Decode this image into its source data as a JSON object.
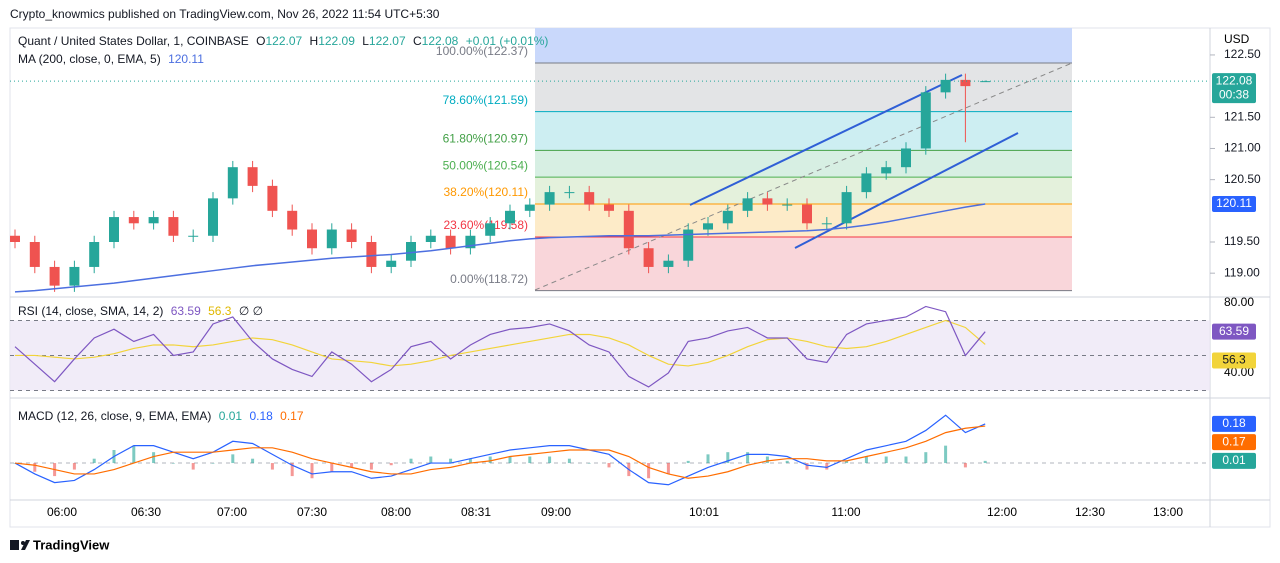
{
  "header": {
    "text": "Crypto_knowmics published on TradingView.com, Nov 26, 2022 11:54 UTC+5:30"
  },
  "footer": {
    "brand": "TradingView"
  },
  "chart_data": {
    "type": "candlestick",
    "symbol": "Quant / United States Dollar, 1, COINBASE",
    "ohlc_labels": [
      "O",
      "H",
      "L",
      "C"
    ],
    "change": "+0.01 (+0.01%)",
    "currency": "USD",
    "countdown": "00:38",
    "up_color": "#26a69a",
    "down_color": "#ef5350",
    "ylim": [
      118.65,
      122.9
    ],
    "yticks": [
      {
        "value": 122.5,
        "label": "122.50"
      },
      {
        "value": 121.5,
        "label": "121.50"
      },
      {
        "value": 121,
        "label": "121.00"
      },
      {
        "value": 120.5,
        "label": "120.50"
      },
      {
        "value": 119.5,
        "label": "119.50"
      },
      {
        "value": 119,
        "label": "119.00"
      }
    ],
    "xticks": [
      "06:00",
      "06:30",
      "07:00",
      "07:30",
      "08:00",
      "08:31",
      "09:00",
      "10:01",
      "11:00",
      "12:00",
      "12:30",
      "13:00"
    ],
    "candles": {
      "open": [
        119.6,
        119.5,
        119.1,
        118.8,
        119.1,
        119.5,
        119.9,
        119.8,
        119.9,
        119.6,
        119.6,
        120.2,
        120.7,
        120.4,
        120.0,
        119.7,
        119.4,
        119.7,
        119.5,
        119.1,
        119.2,
        119.5,
        119.6,
        119.4,
        119.6,
        119.8,
        120.0,
        120.1,
        120.3,
        120.3,
        120.1,
        120.0,
        119.4,
        119.1,
        119.2,
        119.7,
        119.8,
        120.0,
        120.2,
        120.1,
        120.1,
        119.8,
        119.8,
        120.3,
        120.6,
        120.7,
        121.0,
        121.9,
        122.1,
        122.07
      ],
      "high": [
        119.7,
        119.6,
        119.2,
        119.2,
        119.6,
        120.0,
        120.0,
        120.0,
        120.0,
        119.7,
        120.3,
        120.8,
        120.8,
        120.5,
        120.1,
        119.8,
        119.8,
        119.8,
        119.6,
        119.3,
        119.6,
        119.7,
        119.7,
        119.7,
        119.9,
        120.1,
        120.2,
        120.4,
        120.4,
        120.4,
        120.2,
        120.1,
        119.5,
        119.3,
        119.8,
        119.9,
        120.1,
        120.3,
        120.3,
        120.2,
        120.2,
        119.9,
        120.4,
        120.7,
        120.8,
        121.1,
        122.0,
        122.2,
        122.2,
        122.09
      ],
      "low": [
        119.4,
        119.0,
        118.7,
        118.7,
        119.0,
        119.4,
        119.7,
        119.7,
        119.5,
        119.5,
        119.5,
        120.1,
        120.3,
        119.9,
        119.6,
        119.3,
        119.3,
        119.4,
        119.0,
        119.0,
        119.1,
        119.4,
        119.3,
        119.3,
        119.5,
        119.7,
        119.9,
        120.0,
        120.2,
        120.0,
        119.9,
        119.3,
        119.0,
        119.0,
        119.1,
        119.6,
        119.7,
        119.9,
        120.0,
        120.0,
        119.7,
        119.7,
        119.7,
        120.2,
        120.5,
        120.6,
        120.9,
        121.8,
        121.1,
        122.07
      ],
      "close": [
        119.5,
        119.1,
        118.8,
        119.1,
        119.5,
        119.9,
        119.8,
        119.9,
        119.6,
        119.6,
        120.2,
        120.7,
        120.4,
        120.0,
        119.7,
        119.4,
        119.7,
        119.5,
        119.1,
        119.2,
        119.5,
        119.6,
        119.4,
        119.6,
        119.8,
        120.0,
        120.1,
        120.3,
        120.3,
        120.1,
        120.0,
        119.4,
        119.1,
        119.2,
        119.7,
        119.8,
        120.0,
        120.2,
        120.1,
        120.1,
        119.8,
        119.8,
        120.3,
        120.6,
        120.7,
        121.0,
        121.9,
        122.1,
        122.0,
        122.08
      ]
    },
    "ma": {
      "name": "MA (200, close, 0, EMA, 5)",
      "color": "#4c6fe0",
      "values": [
        118.7,
        118.72,
        118.75,
        118.78,
        118.81,
        118.84,
        118.88,
        118.92,
        118.96,
        119.0,
        119.04,
        119.08,
        119.12,
        119.15,
        119.18,
        119.21,
        119.24,
        119.26,
        119.28,
        119.3,
        119.33,
        119.36,
        119.4,
        119.44,
        119.48,
        119.52,
        119.55,
        119.57,
        119.58,
        119.59,
        119.6,
        119.6,
        119.6,
        119.61,
        119.62,
        119.63,
        119.64,
        119.65,
        119.66,
        119.67,
        119.68,
        119.7,
        119.73,
        119.77,
        119.82,
        119.88,
        119.94,
        120.0,
        120.06,
        120.11
      ]
    },
    "fib_levels": [
      {
        "label": "100.00%(122.37)",
        "price": 122.37,
        "color": "#787b86",
        "fill": "#e3e4e6"
      },
      {
        "label": "78.60%(121.59)",
        "price": 121.59,
        "color": "#00acc1",
        "fill": "#cdeef2"
      },
      {
        "label": "61.80%(120.97)",
        "price": 120.97,
        "color": "#43a047",
        "fill": "#d7efe3"
      },
      {
        "label": "50.00%(120.54)",
        "price": 120.54,
        "color": "#4caf50",
        "fill": "#e4f1dc"
      },
      {
        "label": "38.20%(120.11)",
        "price": 120.11,
        "color": "#ff9800",
        "fill": "#fdebc8"
      },
      {
        "label": "23.60%(119.58)",
        "price": 119.58,
        "color": "#f23645",
        "fill": "#f9d6da"
      },
      {
        "label": "0.00%(118.72)",
        "price": 118.72,
        "color": "#787b86",
        "fill": "#f9d6da"
      }
    ],
    "rsi": {
      "name": "RSI (14, close, SMA, 14, 2)",
      "extra": "∅ ∅",
      "color": "#7e57c2",
      "sma_color": "#f2d43a",
      "ylim": [
        27.4,
        81.7
      ],
      "yticks": [
        {
          "value": 80,
          "label": "80.00"
        },
        {
          "value": 40,
          "label": "40.00"
        }
      ],
      "bands": [
        70,
        30
      ],
      "midline": 50,
      "values": [
        55,
        45,
        35,
        48,
        60,
        65,
        58,
        62,
        50,
        52,
        68,
        72,
        58,
        48,
        42,
        38,
        52,
        45,
        35,
        42,
        55,
        58,
        48,
        56,
        62,
        65,
        66,
        68,
        64,
        56,
        52,
        38,
        32,
        40,
        58,
        60,
        64,
        66,
        60,
        60,
        48,
        46,
        62,
        68,
        70,
        72,
        78,
        75,
        50,
        63.59
      ],
      "sma": [
        50,
        50,
        49,
        48,
        49,
        51,
        54,
        56,
        56,
        55,
        56,
        58,
        60,
        59,
        56,
        52,
        48,
        47,
        46,
        44,
        45,
        47,
        50,
        52,
        54,
        56,
        58,
        60,
        62,
        62,
        60,
        56,
        50,
        45,
        44,
        46,
        50,
        55,
        59,
        60,
        58,
        55,
        54,
        55,
        58,
        62,
        66,
        70,
        66,
        56.3
      ]
    },
    "macd": {
      "name": "MACD (12, 26, close, 9, EMA, EMA)",
      "ylim": [
        -0.17,
        0.29
      ],
      "hist_color": "#26a69a",
      "macd_color": "#2962ff",
      "signal_color": "#ff6d00",
      "hist_down_color": "#ef5350",
      "histogram": [
        0.0,
        -0.04,
        -0.06,
        -0.03,
        0.02,
        0.06,
        0.08,
        0.05,
        0.0,
        -0.03,
        0.0,
        0.04,
        0.02,
        -0.03,
        -0.06,
        -0.07,
        -0.04,
        -0.02,
        -0.03,
        -0.01,
        0.02,
        0.03,
        0.02,
        0.02,
        0.03,
        0.03,
        0.03,
        0.03,
        0.02,
        0.0,
        -0.02,
        -0.06,
        -0.07,
        -0.05,
        0.01,
        0.04,
        0.05,
        0.05,
        0.03,
        0.01,
        -0.03,
        -0.03,
        0.01,
        0.03,
        0.03,
        0.03,
        0.05,
        0.08,
        -0.02,
        0.01
      ],
      "macd": [
        0.0,
        -0.05,
        -0.09,
        -0.08,
        -0.03,
        0.03,
        0.08,
        0.08,
        0.05,
        0.02,
        0.05,
        0.1,
        0.09,
        0.04,
        -0.01,
        -0.05,
        -0.04,
        -0.04,
        -0.07,
        -0.06,
        -0.03,
        0.0,
        0.0,
        0.02,
        0.04,
        0.06,
        0.07,
        0.08,
        0.08,
        0.06,
        0.04,
        -0.03,
        -0.09,
        -0.1,
        -0.06,
        -0.02,
        0.01,
        0.04,
        0.04,
        0.03,
        -0.01,
        -0.02,
        0.02,
        0.06,
        0.08,
        0.1,
        0.15,
        0.22,
        0.14,
        0.18
      ],
      "signal": [
        0.0,
        -0.01,
        -0.03,
        -0.05,
        -0.05,
        -0.03,
        0.0,
        0.03,
        0.05,
        0.05,
        0.05,
        0.06,
        0.07,
        0.07,
        0.05,
        0.02,
        0.0,
        -0.02,
        -0.04,
        -0.05,
        -0.05,
        -0.03,
        -0.02,
        0.0,
        0.01,
        0.03,
        0.04,
        0.05,
        0.06,
        0.06,
        0.06,
        0.03,
        -0.02,
        -0.05,
        -0.07,
        -0.06,
        -0.04,
        -0.01,
        0.01,
        0.02,
        0.02,
        0.01,
        0.01,
        0.03,
        0.05,
        0.07,
        0.1,
        0.14,
        0.16,
        0.17
      ]
    }
  }
}
